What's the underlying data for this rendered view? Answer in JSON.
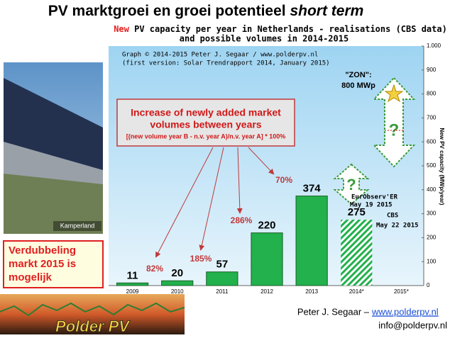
{
  "slide": {
    "title": "PV marktgroei en groei potentieel",
    "title_emphasis": "short term",
    "photo_caption": "Kamperland",
    "note": [
      "Verdubbeling",
      "markt 2015 is",
      "mogelijk"
    ],
    "logo": "Polder PV",
    "footer_author": "Peter J. Segaar –",
    "footer_url": "www.polderpv.nl",
    "footer_email": "info@polderpv.nl"
  },
  "chart_data": {
    "type": "bar",
    "title_lead": "New",
    "title": "PV capacity per year in Netherlands - realisations (CBS data)",
    "subtitle": "and possible volumes in 2014-2015",
    "credit": [
      "Graph © 2014-2015 Peter J. Segaar / www.polderpv.nl",
      "(first version: Solar Trendrapport 2014, January 2015)"
    ],
    "y_label": "New PV capacity (MWp/year)",
    "categories": [
      "2009",
      "2010",
      "2011",
      "2012",
      "2013",
      "2014*",
      "2015*"
    ],
    "values": [
      11,
      20,
      57,
      220,
      374,
      275,
      null
    ],
    "color": "#22b14c",
    "estimate_categories": [
      "2014*"
    ],
    "ylim": [
      0,
      1000
    ],
    "yticks": [
      0,
      100,
      200,
      300,
      400,
      500,
      600,
      700,
      800,
      {
        "value": 900,
        "label": "900"
      },
      {
        "value": 1000,
        "label": "1.000"
      }
    ],
    "box_text": [
      "Increase of newly added market",
      "volumes between years",
      "[(new volume year B - n.v. year A)/n.v. year A] * 100%"
    ],
    "growth_labels": [
      "82%",
      "185%",
      "286%",
      "70%"
    ],
    "annotations": [
      "\"ZON\":",
      "800 MWp",
      "EurObserv'ER",
      "May 19 2015",
      "CBS",
      "May 22 2015"
    ]
  }
}
